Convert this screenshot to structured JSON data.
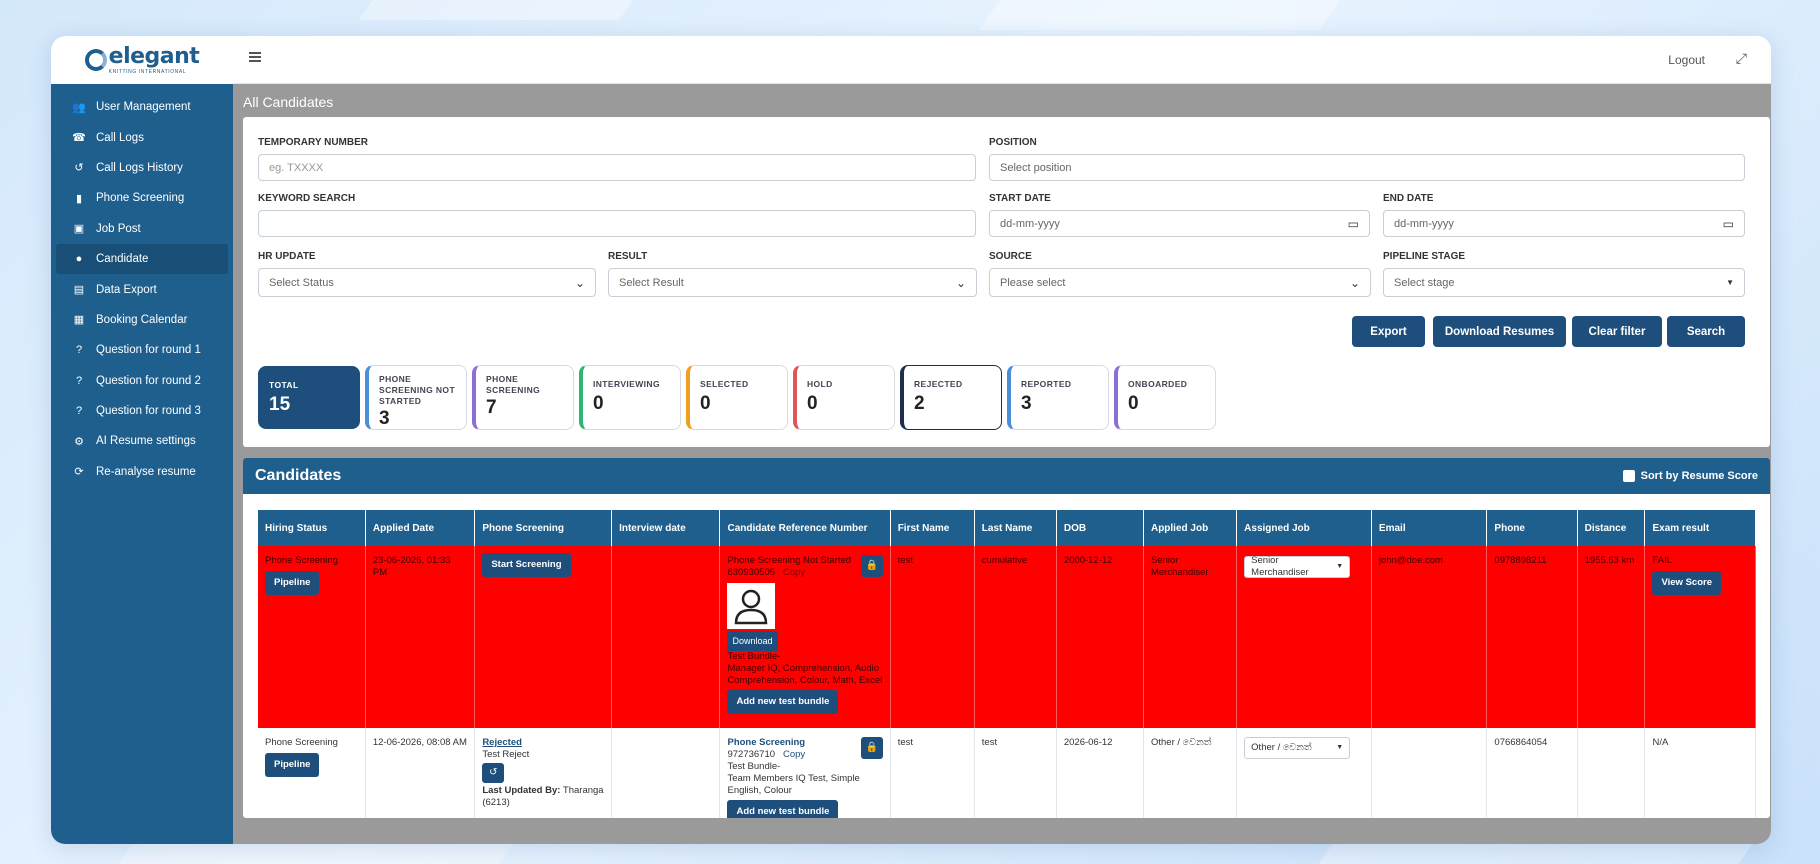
{
  "app": {
    "logo_word": "elegant",
    "logo_sub": "KNITTING INTERNATIONAL"
  },
  "sidebar": {
    "items": [
      {
        "label": "User Management",
        "icon": "users-icon"
      },
      {
        "label": "Call Logs",
        "icon": "phone-icon"
      },
      {
        "label": "Call Logs History",
        "icon": "history-icon"
      },
      {
        "label": "Phone Screening",
        "icon": "mobile-icon"
      },
      {
        "label": "Job Post",
        "icon": "briefcase-icon"
      },
      {
        "label": "Candidate",
        "icon": "user-icon",
        "active": true
      },
      {
        "label": "Data Export",
        "icon": "file-export-icon"
      },
      {
        "label": "Booking Calendar",
        "icon": "calendar-icon"
      },
      {
        "label": "Question for round 1",
        "icon": "question-icon"
      },
      {
        "label": "Question for round 2",
        "icon": "question-icon"
      },
      {
        "label": "Question for round 3",
        "icon": "question-icon"
      },
      {
        "label": "AI Resume settings",
        "icon": "user-gear-icon"
      },
      {
        "label": "Re-analyse resume",
        "icon": "refresh-icon"
      }
    ]
  },
  "topbar": {
    "logout": "Logout"
  },
  "page": {
    "title": "All Candidates"
  },
  "filters": {
    "temporary_number": {
      "label": "TEMPORARY NUMBER",
      "placeholder": "eg. TXXXX"
    },
    "position": {
      "label": "POSITION",
      "placeholder": "Select position"
    },
    "keyword": {
      "label": "KEYWORD SEARCH",
      "placeholder": ""
    },
    "start_date": {
      "label": "START DATE",
      "placeholder": "dd-mm-yyyy"
    },
    "end_date": {
      "label": "END DATE",
      "placeholder": "dd-mm-yyyy"
    },
    "hr_update": {
      "label": "HR UPDATE",
      "value": "Select Status"
    },
    "result": {
      "label": "RESULT",
      "value": "Select Result"
    },
    "source": {
      "label": "SOURCE",
      "value": "Please select"
    },
    "pipeline_stage": {
      "label": "PIPELINE STAGE",
      "value": "Select stage"
    }
  },
  "actions": {
    "export": "Export",
    "download_resumes": "Download Resumes",
    "clear_filter": "Clear filter",
    "search": "Search"
  },
  "stats": [
    {
      "label": "TOTAL",
      "value": "15",
      "color": "#1e4f7c"
    },
    {
      "label": "PHONE SCREENING NOT STARTED",
      "value": "3",
      "color": "#4a90d9"
    },
    {
      "label": "PHONE SCREENING",
      "value": "7",
      "color": "#8a6fd6"
    },
    {
      "label": "INTERVIEWING",
      "value": "0",
      "color": "#2bb673"
    },
    {
      "label": "SELECTED",
      "value": "0",
      "color": "#f0a020"
    },
    {
      "label": "HOLD",
      "value": "0",
      "color": "#e05555"
    },
    {
      "label": "REJECTED",
      "value": "2",
      "color": "#1e2f4c"
    },
    {
      "label": "REPORTED",
      "value": "3",
      "color": "#4a90d9"
    },
    {
      "label": "ONBOARDED",
      "value": "0",
      "color": "#8a6fd6"
    }
  ],
  "candidates": {
    "title": "Candidates",
    "sort_label": "Sort by Resume Score",
    "columns": [
      "Hiring Status",
      "Applied Date",
      "Phone Screening",
      "Interview date",
      "Candidate Reference Number",
      "First Name",
      "Last Name",
      "DOB",
      "Applied Job",
      "Assigned Job",
      "Email",
      "Phone",
      "Distance",
      "Exam result"
    ],
    "rows": [
      {
        "hiring_status": "Phone Screening",
        "pipeline_btn": "Pipeline",
        "applied_date": "23-06-2026, 01:33 PM",
        "phone_screening_btn": "Start Screening",
        "interview_date": "",
        "ref_status": "Phone Screening Not Started",
        "ref_number": "830930505",
        "ref_copy": "Copy",
        "download": "Download",
        "test_bundle": "Test Bundle-",
        "bundle_detail": "Manager IQ, Comprehension, Audio Comprehension, Colour, Math, Excel",
        "add_bundle": "Add new test bundle",
        "first_name": "test",
        "last_name": "cumulative",
        "dob": "2000-12-12",
        "applied_job": "Senior Merchandiser",
        "assigned_job": "Senior Merchandiser",
        "email": "john@doe.com",
        "phone": "0978898211",
        "distance": "1955.63 km",
        "exam_result": "FAIL",
        "view_score": "View Score"
      },
      {
        "hiring_status": "Phone Screening",
        "pipeline_btn": "Pipeline",
        "applied_date": "12-06-2026, 08:08 AM",
        "phone_screening_status": "Rejected",
        "phone_screening_reason": "Test Reject",
        "last_updated_label": "Last Updated By:",
        "last_updated_value": "Tharanga (6213)",
        "interview_date": "",
        "ref_status": "Phone Screening",
        "ref_number": "972736710",
        "ref_copy": "Copy",
        "test_bundle": "Test Bundle-",
        "bundle_detail": "Team Members IQ Test, Simple English, Colour",
        "add_bundle": "Add new test bundle",
        "first_name": "test",
        "last_name": "test",
        "dob": "2026-06-12",
        "applied_job": "Other / වෙනත්",
        "assigned_job": "Other / වෙනත්",
        "email": "",
        "phone": "0766864054",
        "distance": "",
        "exam_result": "N/A"
      }
    ]
  }
}
